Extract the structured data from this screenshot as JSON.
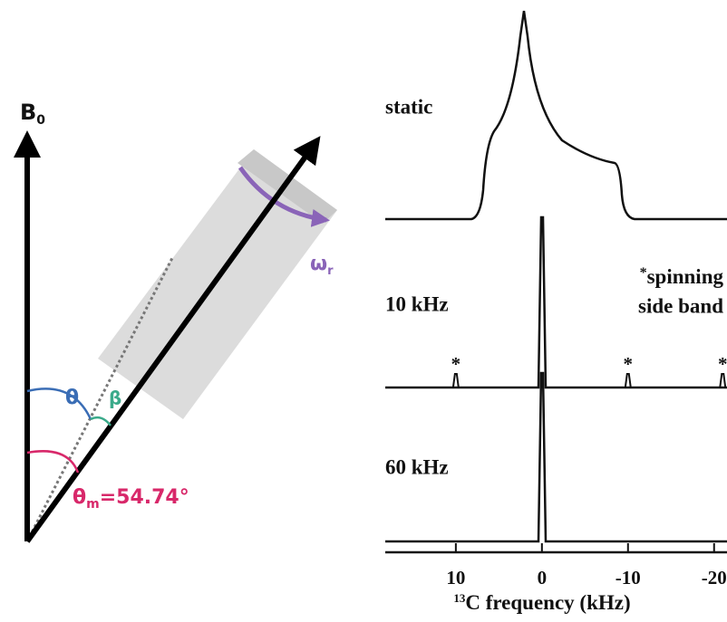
{
  "diagram": {
    "b0": {
      "label": "B",
      "subscript": "0"
    },
    "theta": "θ",
    "beta": "β",
    "omega": {
      "label": "ω",
      "subscript": "r"
    },
    "magic_angle": {
      "label": "θ",
      "subscript": "m",
      "value": "=54.74°"
    }
  },
  "chart_data": {
    "type": "spectrum",
    "panels": [
      {
        "label": "static"
      },
      {
        "label": "10 kHz"
      },
      {
        "label": "60 kHz"
      }
    ],
    "note": {
      "marker": "*",
      "lines": [
        "spinning",
        "side band"
      ]
    },
    "sidebands": [
      10,
      -10,
      -21
    ],
    "xlabel_sup": "13",
    "xlabel": "C frequency (kHz)",
    "xlim": [
      18.2,
      -21.5
    ],
    "xticks": [
      10,
      0,
      -10,
      -20
    ]
  }
}
